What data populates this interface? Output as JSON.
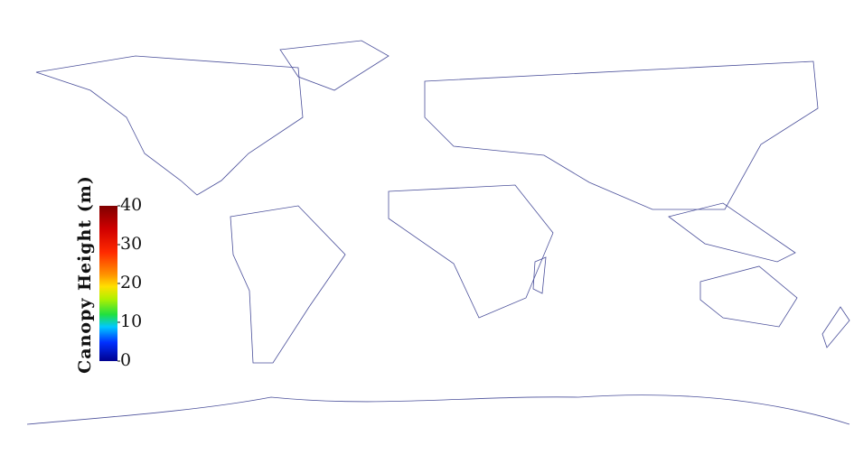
{
  "colorbar": {
    "label": "Canopy Height (m)",
    "range": [
      0,
      40
    ],
    "ticks": [
      0,
      10,
      20,
      30,
      40
    ]
  }
}
